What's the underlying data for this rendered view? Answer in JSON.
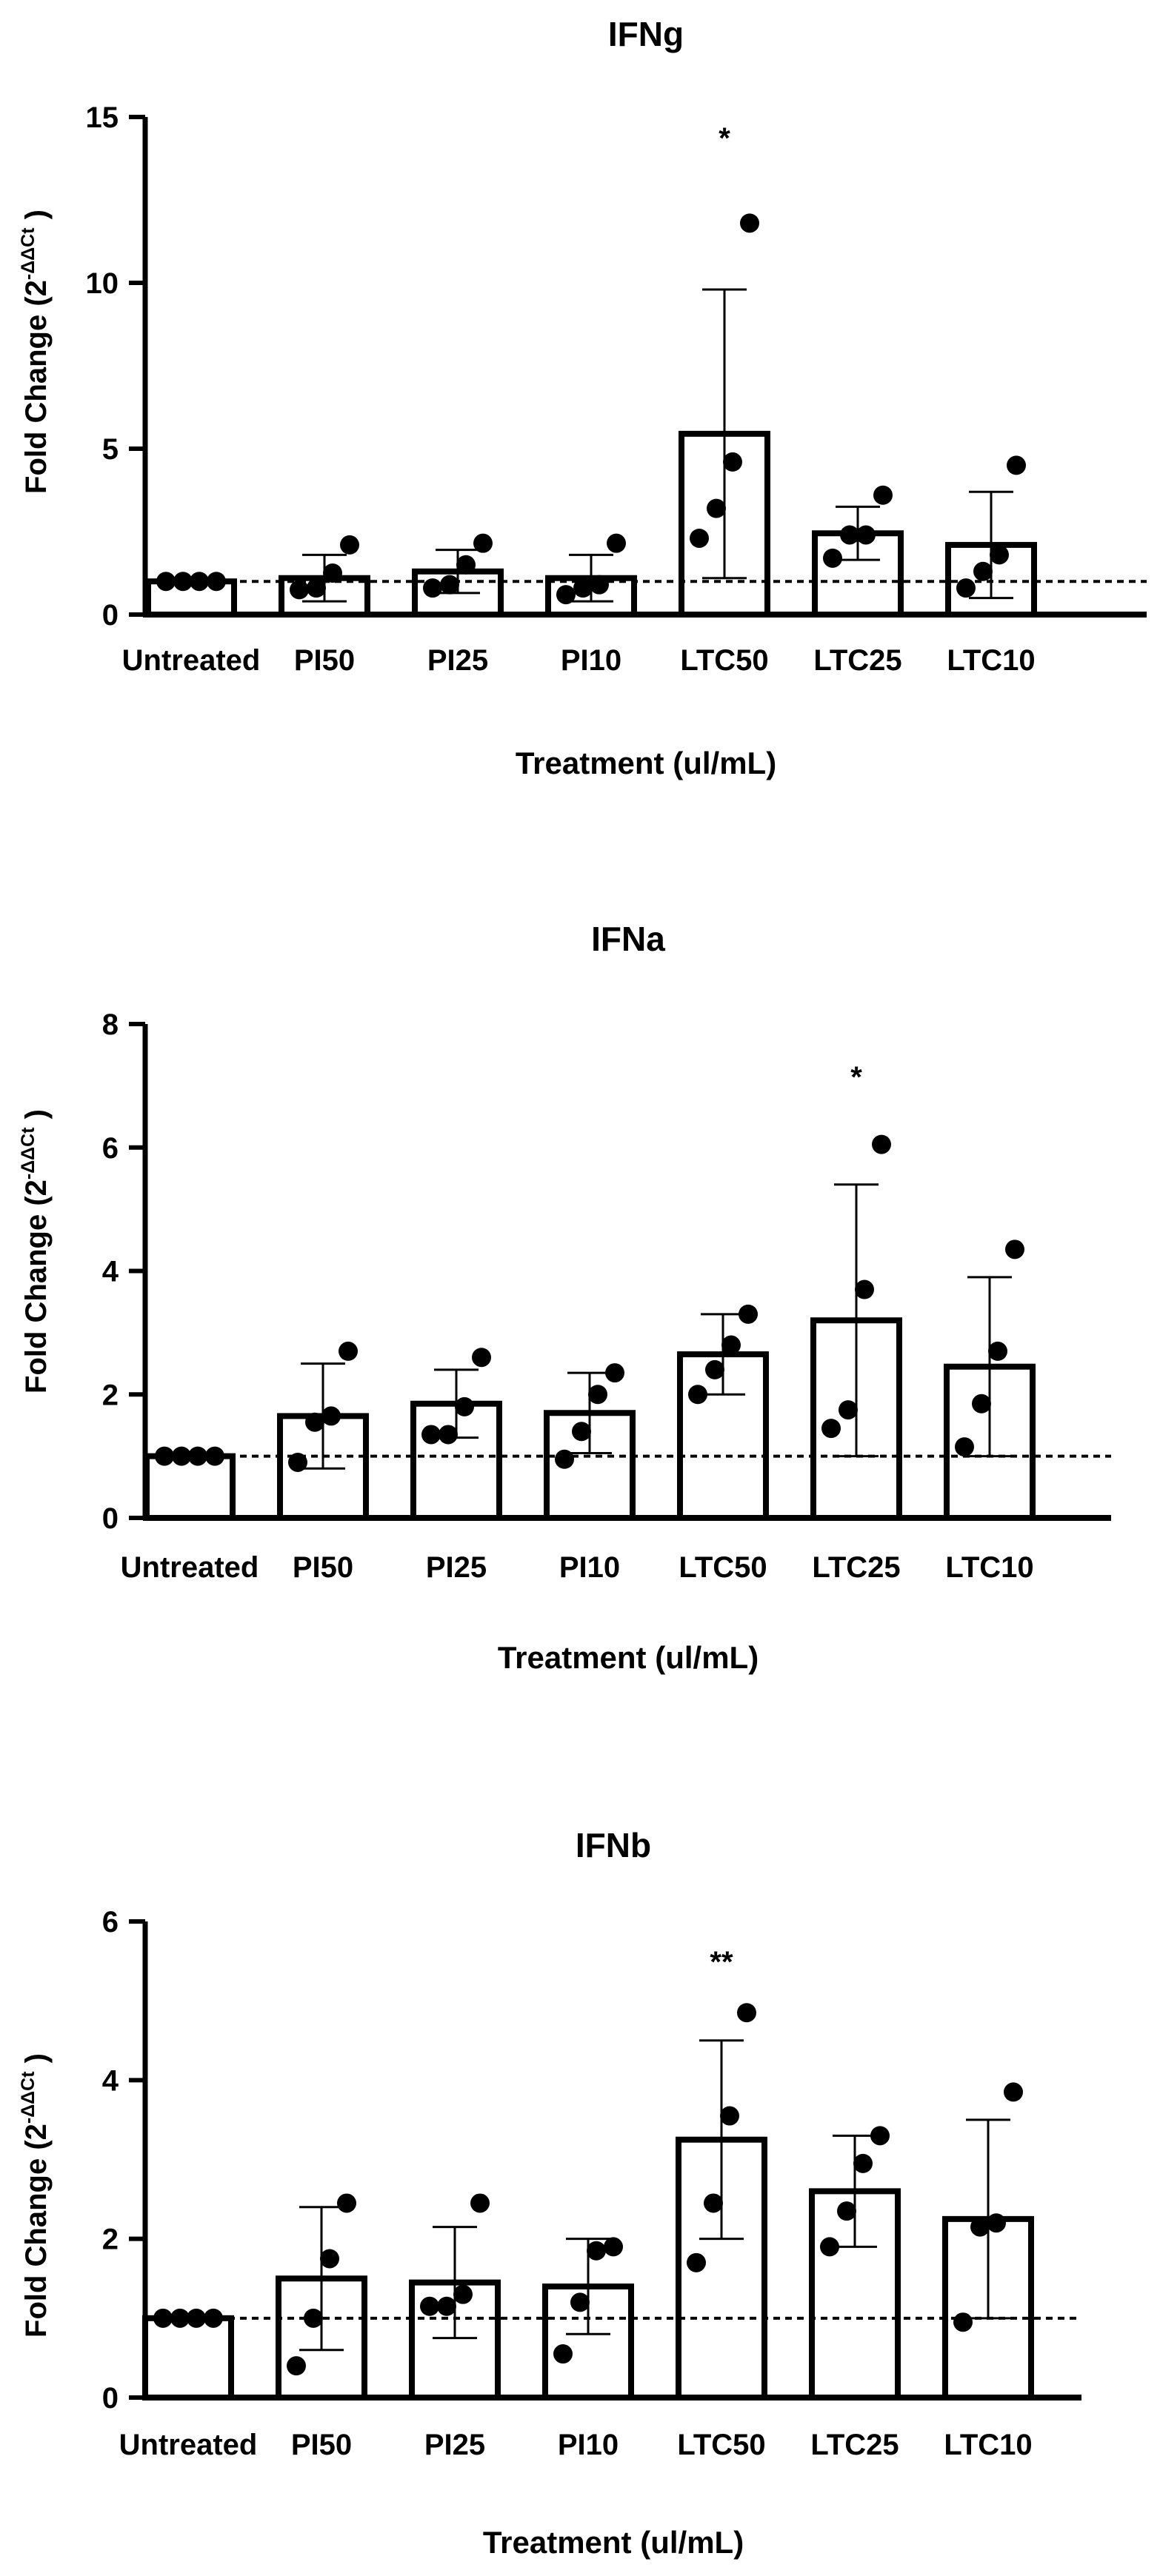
{
  "chart_data": [
    {
      "type": "bar",
      "title": "IFNg",
      "xlabel": "Treatment (ul/mL)",
      "ylabel": "Fold Change (2",
      "ylabel_superscript": "-ΔΔCt",
      "ylabel_close": " )",
      "categories": [
        "Untreated",
        "PI50",
        "PI25",
        "PI10",
        "LTC50",
        "LTC25",
        "LTC10"
      ],
      "values": [
        1.0,
        1.1,
        1.3,
        1.1,
        5.45,
        2.45,
        2.1
      ],
      "error": [
        0.0,
        0.7,
        0.65,
        0.7,
        4.35,
        0.8,
        1.6
      ],
      "points": [
        [
          1,
          1,
          1,
          1
        ],
        [
          0.75,
          0.8,
          1.25,
          2.1
        ],
        [
          0.8,
          0.9,
          1.5,
          2.15
        ],
        [
          0.6,
          0.8,
          0.9,
          2.15
        ],
        [
          2.3,
          3.2,
          4.6,
          11.8
        ],
        [
          1.7,
          2.4,
          2.4,
          3.6
        ],
        [
          0.8,
          1.3,
          1.8,
          4.5
        ]
      ],
      "significance": [
        null,
        null,
        null,
        null,
        "*",
        null,
        null
      ],
      "ylim": [
        0,
        15
      ],
      "yticks": [
        0,
        5,
        10,
        15
      ],
      "reference_line": 1,
      "grid": false
    },
    {
      "type": "bar",
      "title": "IFNa",
      "xlabel": "Treatment (ul/mL)",
      "ylabel": "Fold Change (2",
      "ylabel_superscript": "-ΔΔCt",
      "ylabel_close": " )",
      "categories": [
        "Untreated",
        "PI50",
        "PI25",
        "PI10",
        "LTC50",
        "LTC25",
        "LTC10"
      ],
      "values": [
        1.0,
        1.65,
        1.85,
        1.7,
        2.65,
        3.2,
        2.45
      ],
      "error": [
        0.0,
        0.85,
        0.55,
        0.65,
        0.65,
        2.2,
        1.45
      ],
      "points": [
        [
          1,
          1,
          1,
          1
        ],
        [
          0.9,
          1.55,
          1.65,
          2.7
        ],
        [
          1.35,
          1.35,
          1.8,
          2.6
        ],
        [
          0.95,
          1.4,
          2.0,
          2.35
        ],
        [
          2.0,
          2.4,
          2.8,
          3.3
        ],
        [
          1.45,
          1.75,
          3.7,
          6.05
        ],
        [
          1.15,
          1.85,
          2.7,
          4.35
        ]
      ],
      "significance": [
        null,
        null,
        null,
        null,
        null,
        "*",
        null
      ],
      "ylim": [
        0,
        8
      ],
      "yticks": [
        0,
        2,
        4,
        6,
        8
      ],
      "reference_line": 1,
      "grid": false
    },
    {
      "type": "bar",
      "title": "IFNb",
      "xlabel": "Treatment (ul/mL)",
      "ylabel": "Fold Change (2",
      "ylabel_superscript": "-ΔΔCt",
      "ylabel_close": " )",
      "categories": [
        "Untreated",
        "PI50",
        "PI25",
        "PI10",
        "LTC50",
        "LTC25",
        "LTC10"
      ],
      "values": [
        1.0,
        1.5,
        1.45,
        1.4,
        3.25,
        2.6,
        2.25
      ],
      "error": [
        0.0,
        0.9,
        0.7,
        0.6,
        1.25,
        0.7,
        1.25
      ],
      "points": [
        [
          1,
          1,
          1,
          1
        ],
        [
          0.4,
          1.0,
          1.75,
          2.45
        ],
        [
          1.15,
          1.15,
          1.3,
          2.45
        ],
        [
          0.55,
          1.2,
          1.85,
          1.9
        ],
        [
          1.7,
          2.45,
          3.55,
          4.85
        ],
        [
          1.9,
          2.35,
          2.95,
          3.3
        ],
        [
          0.95,
          2.15,
          2.2,
          3.85
        ]
      ],
      "significance": [
        null,
        null,
        null,
        null,
        "**",
        null,
        null
      ],
      "ylim": [
        0,
        6
      ],
      "yticks": [
        0,
        2,
        4,
        6
      ],
      "reference_line": 1,
      "grid": false
    }
  ]
}
